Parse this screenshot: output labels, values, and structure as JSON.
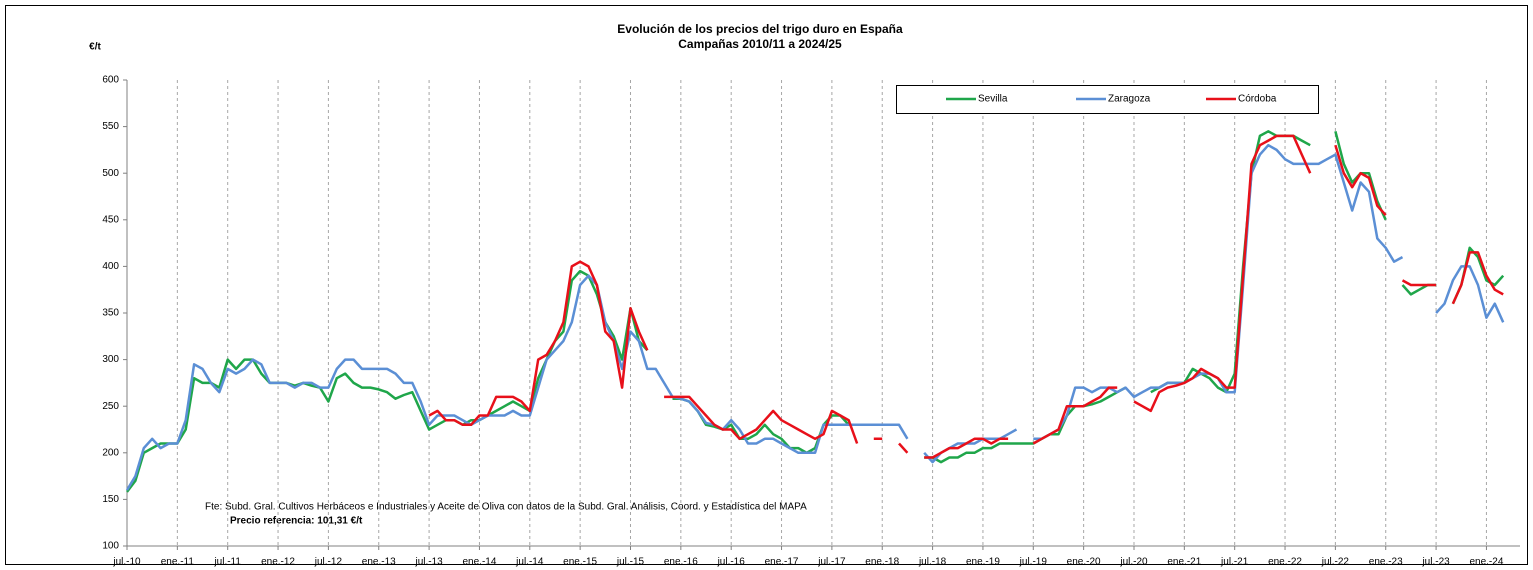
{
  "chart_data": {
    "type": "line",
    "title": "Evolución de los precios del trigo duro en España",
    "subtitle": "Campañas 2010/11 a 2024/25",
    "y_label": "€/t",
    "annotations": [
      "Fte: Subd. Gral. Cultivos Herbáceos e Industriales y Aceite de Oliva con datos de la Subd. Gral. Análisis, Coord. y Estadística del MAPA",
      "Precio referencia: 101,31 €/t"
    ],
    "x": [
      "2010-07",
      "2010-08",
      "2010-09",
      "2010-10",
      "2010-11",
      "2010-12",
      "2011-01",
      "2011-02",
      "2011-03",
      "2011-04",
      "2011-05",
      "2011-06",
      "2011-07",
      "2011-08",
      "2011-09",
      "2011-10",
      "2011-11",
      "2011-12",
      "2012-01",
      "2012-02",
      "2012-03",
      "2012-04",
      "2012-05",
      "2012-06",
      "2012-07",
      "2012-08",
      "2012-09",
      "2012-10",
      "2012-11",
      "2012-12",
      "2013-01",
      "2013-02",
      "2013-03",
      "2013-04",
      "2013-05",
      "2013-06",
      "2013-07",
      "2013-08",
      "2013-09",
      "2013-10",
      "2013-11",
      "2013-12",
      "2014-01",
      "2014-02",
      "2014-03",
      "2014-04",
      "2014-05",
      "2014-06",
      "2014-07",
      "2014-08",
      "2014-09",
      "2014-10",
      "2014-11",
      "2014-12",
      "2015-01",
      "2015-02",
      "2015-03",
      "2015-04",
      "2015-05",
      "2015-06",
      "2015-07",
      "2015-08",
      "2015-09",
      "2015-10",
      "2015-11",
      "2015-12",
      "2016-01",
      "2016-02",
      "2016-03",
      "2016-04",
      "2016-05",
      "2016-06",
      "2016-07",
      "2016-08",
      "2016-09",
      "2016-10",
      "2016-11",
      "2016-12",
      "2017-01",
      "2017-02",
      "2017-03",
      "2017-04",
      "2017-05",
      "2017-06",
      "2017-07",
      "2017-08",
      "2017-09",
      "2017-10",
      "2017-11",
      "2017-12",
      "2018-01",
      "2018-02",
      "2018-03",
      "2018-04",
      "2018-05",
      "2018-06",
      "2018-07",
      "2018-08",
      "2018-09",
      "2018-10",
      "2018-11",
      "2018-12",
      "2019-01",
      "2019-02",
      "2019-03",
      "2019-04",
      "2019-05",
      "2019-06",
      "2019-07",
      "2019-08",
      "2019-09",
      "2019-10",
      "2019-11",
      "2019-12",
      "2020-01",
      "2020-02",
      "2020-03",
      "2020-04",
      "2020-05",
      "2020-06",
      "2020-07",
      "2020-08",
      "2020-09",
      "2020-10",
      "2020-11",
      "2020-12",
      "2021-01",
      "2021-02",
      "2021-03",
      "2021-04",
      "2021-05",
      "2021-06",
      "2021-07",
      "2021-08",
      "2021-09",
      "2021-10",
      "2021-11",
      "2021-12",
      "2022-01",
      "2022-02",
      "2022-03",
      "2022-04",
      "2022-05",
      "2022-06",
      "2022-07",
      "2022-08",
      "2022-09",
      "2022-10",
      "2022-11",
      "2022-12",
      "2023-01",
      "2023-02",
      "2023-03",
      "2023-04",
      "2023-05",
      "2023-06",
      "2023-07",
      "2023-08",
      "2023-09",
      "2023-10",
      "2023-11",
      "2023-12",
      "2024-01",
      "2024-02",
      "2024-03"
    ],
    "series": [
      {
        "name": "Sevilla",
        "color": "#1fa64a",
        "values": [
          158,
          170,
          200,
          205,
          210,
          210,
          210,
          225,
          280,
          275,
          275,
          270,
          300,
          290,
          300,
          300,
          285,
          275,
          275,
          275,
          272,
          275,
          272,
          270,
          255,
          280,
          285,
          275,
          270,
          270,
          268,
          265,
          258,
          262,
          265,
          245,
          225,
          230,
          235,
          235,
          230,
          235,
          235,
          240,
          245,
          250,
          255,
          250,
          245,
          280,
          300,
          320,
          330,
          385,
          395,
          390,
          370,
          340,
          325,
          300,
          355,
          320,
          310,
          null,
          null,
          258,
          258,
          255,
          245,
          230,
          228,
          225,
          230,
          215,
          215,
          220,
          230,
          220,
          215,
          205,
          205,
          200,
          205,
          230,
          240,
          240,
          230,
          null,
          null,
          null,
          null,
          null,
          null,
          null,
          null,
          195,
          195,
          190,
          195,
          195,
          200,
          200,
          205,
          205,
          210,
          210,
          210,
          210,
          210,
          215,
          220,
          220,
          240,
          250,
          250,
          252,
          255,
          260,
          265,
          270,
          null,
          null,
          265,
          270,
          275,
          275,
          275,
          290,
          285,
          280,
          270,
          265,
          285,
          400,
          500,
          540,
          545,
          540,
          540,
          540,
          535,
          530,
          null,
          null,
          545,
          510,
          490,
          500,
          500,
          470,
          450,
          null,
          380,
          370,
          375,
          380,
          380,
          null,
          360,
          380,
          420,
          410,
          385,
          380,
          390
        ]
      },
      {
        "name": "Zaragoza",
        "color": "#5b8fd5",
        "values": [
          160,
          175,
          205,
          215,
          205,
          210,
          210,
          235,
          295,
          290,
          275,
          265,
          290,
          285,
          290,
          300,
          295,
          275,
          275,
          275,
          270,
          275,
          275,
          270,
          270,
          290,
          300,
          300,
          290,
          290,
          290,
          290,
          285,
          275,
          275,
          255,
          230,
          240,
          240,
          240,
          235,
          230,
          235,
          240,
          240,
          240,
          245,
          240,
          240,
          270,
          300,
          310,
          320,
          340,
          380,
          390,
          380,
          340,
          320,
          290,
          330,
          320,
          290,
          290,
          275,
          260,
          258,
          255,
          245,
          232,
          230,
          225,
          235,
          225,
          210,
          210,
          215,
          215,
          210,
          205,
          200,
          200,
          200,
          230,
          230,
          230,
          230,
          230,
          230,
          230,
          230,
          230,
          230,
          215,
          null,
          200,
          190,
          200,
          205,
          210,
          210,
          210,
          215,
          215,
          215,
          220,
          225,
          null,
          215,
          215,
          220,
          225,
          240,
          270,
          270,
          265,
          270,
          270,
          265,
          270,
          260,
          265,
          270,
          270,
          275,
          275,
          275,
          280,
          285,
          285,
          280,
          265,
          265,
          380,
          500,
          520,
          530,
          525,
          515,
          510,
          510,
          510,
          510,
          515,
          520,
          490,
          460,
          490,
          480,
          430,
          420,
          405,
          410,
          null,
          null,
          null,
          350,
          360,
          385,
          400,
          400,
          380,
          345,
          360,
          340
        ]
      },
      {
        "name": "Córdoba",
        "color": "#e8101a",
        "values": [
          null,
          null,
          null,
          null,
          null,
          null,
          null,
          null,
          null,
          null,
          null,
          null,
          null,
          null,
          null,
          null,
          null,
          null,
          null,
          null,
          null,
          null,
          null,
          null,
          null,
          null,
          null,
          null,
          null,
          null,
          null,
          null,
          null,
          null,
          null,
          null,
          240,
          245,
          235,
          235,
          230,
          230,
          240,
          240,
          260,
          260,
          260,
          255,
          245,
          300,
          305,
          320,
          340,
          400,
          405,
          400,
          380,
          330,
          320,
          270,
          355,
          330,
          310,
          null,
          260,
          260,
          260,
          260,
          250,
          240,
          230,
          225,
          225,
          215,
          220,
          225,
          235,
          245,
          235,
          230,
          225,
          220,
          215,
          220,
          245,
          240,
          235,
          210,
          null,
          215,
          215,
          null,
          210,
          200,
          null,
          195,
          195,
          200,
          205,
          205,
          210,
          215,
          215,
          210,
          215,
          215,
          null,
          null,
          210,
          215,
          220,
          225,
          250,
          250,
          250,
          255,
          260,
          270,
          270,
          null,
          255,
          250,
          245,
          265,
          270,
          272,
          275,
          280,
          290,
          285,
          280,
          270,
          270,
          390,
          510,
          530,
          535,
          540,
          540,
          540,
          520,
          500,
          null,
          null,
          530,
          500,
          485,
          500,
          495,
          465,
          455,
          null,
          385,
          380,
          380,
          380,
          380,
          null,
          360,
          380,
          415,
          415,
          390,
          375,
          370
        ]
      }
    ],
    "xlim": [
      "2010-07",
      "2024-05"
    ],
    "xticks": [
      {
        "value": "2010-07",
        "label": "jul.-10"
      },
      {
        "value": "2011-01",
        "label": "ene.-11"
      },
      {
        "value": "2011-07",
        "label": "jul.-11"
      },
      {
        "value": "2012-01",
        "label": "ene.-12"
      },
      {
        "value": "2012-07",
        "label": "jul.-12"
      },
      {
        "value": "2013-01",
        "label": "ene.-13"
      },
      {
        "value": "2013-07",
        "label": "jul.-13"
      },
      {
        "value": "2014-01",
        "label": "ene.-14"
      },
      {
        "value": "2014-07",
        "label": "jul.-14"
      },
      {
        "value": "2015-01",
        "label": "ene.-15"
      },
      {
        "value": "2015-07",
        "label": "jul.-15"
      },
      {
        "value": "2016-01",
        "label": "ene.-16"
      },
      {
        "value": "2016-07",
        "label": "jul.-16"
      },
      {
        "value": "2017-01",
        "label": "ene.-17"
      },
      {
        "value": "2017-07",
        "label": "jul.-17"
      },
      {
        "value": "2018-01",
        "label": "ene.-18"
      },
      {
        "value": "2018-07",
        "label": "jul.-18"
      },
      {
        "value": "2019-01",
        "label": "ene.-19"
      },
      {
        "value": "2019-07",
        "label": "jul.-19"
      },
      {
        "value": "2020-01",
        "label": "ene.-20"
      },
      {
        "value": "2020-07",
        "label": "jul.-20"
      },
      {
        "value": "2021-01",
        "label": "ene.-21"
      },
      {
        "value": "2021-07",
        "label": "jul.-21"
      },
      {
        "value": "2022-01",
        "label": "ene.-22"
      },
      {
        "value": "2022-07",
        "label": "jul.-22"
      },
      {
        "value": "2023-01",
        "label": "ene.-23"
      },
      {
        "value": "2023-07",
        "label": "jul.-23"
      },
      {
        "value": "2024-01",
        "label": "ene.-24"
      }
    ],
    "ylim": [
      100,
      600
    ],
    "yticks": [
      100,
      150,
      200,
      250,
      300,
      350,
      400,
      450,
      500,
      550,
      600
    ],
    "grid": true,
    "legend": "top-right"
  }
}
